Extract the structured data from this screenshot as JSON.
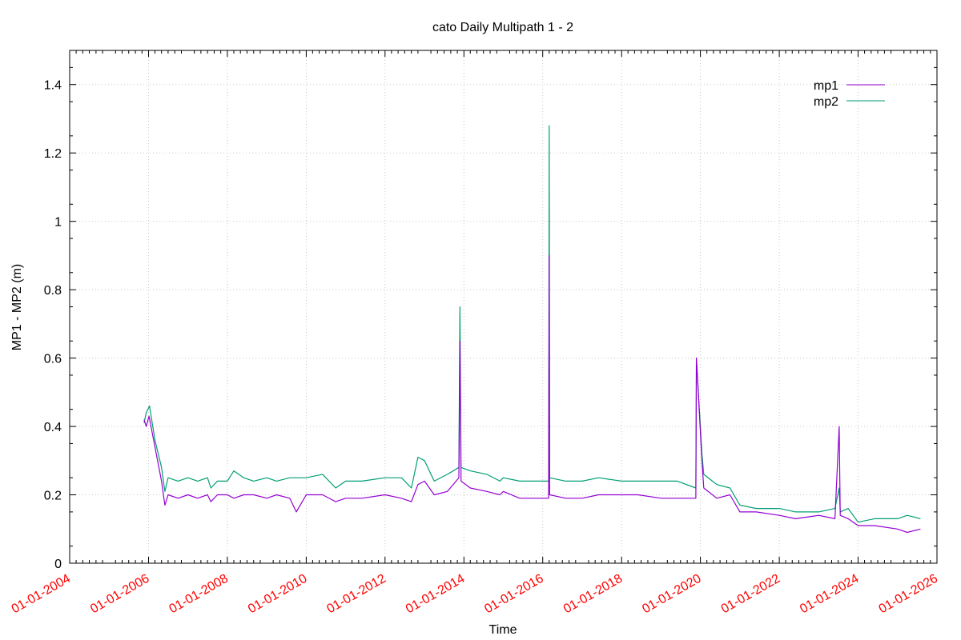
{
  "chart_data": {
    "type": "line",
    "title": "cato Daily Multipath 1 - 2",
    "xlabel": "Time",
    "ylabel": "MP1 - MP2 (m)",
    "x_is_date": true,
    "xlim": [
      "2004-01-01",
      "2026-01-01"
    ],
    "ylim": [
      0,
      1.5
    ],
    "x_ticks": [
      "01-01-2004",
      "01-01-2006",
      "01-01-2008",
      "01-01-2010",
      "01-01-2012",
      "01-01-2014",
      "01-01-2016",
      "01-01-2018",
      "01-01-2020",
      "01-01-2022",
      "01-01-2024",
      "01-01-2026"
    ],
    "y_ticks": [
      0,
      0.2,
      0.4,
      0.6,
      0.8,
      1,
      1.2,
      1.4
    ],
    "y_tick_labels": [
      "0",
      "0.2",
      "0.4",
      "0.6",
      "0.8",
      "1",
      "1.2",
      "1.4"
    ],
    "grid": true,
    "legend_position": "top-right",
    "x_tick_color": "#ff0000",
    "series": [
      {
        "name": "mp1",
        "color": "#9400d3",
        "points": [
          [
            "2005-11-20",
            0.42
          ],
          [
            "2005-12-10",
            0.4
          ],
          [
            "2006-01-05",
            0.43
          ],
          [
            "2006-03-01",
            0.34
          ],
          [
            "2006-05-01",
            0.24
          ],
          [
            "2006-06-01",
            0.17
          ],
          [
            "2006-07-01",
            0.2
          ],
          [
            "2006-10-01",
            0.19
          ],
          [
            "2007-01-01",
            0.2
          ],
          [
            "2007-04-01",
            0.19
          ],
          [
            "2007-07-01",
            0.2
          ],
          [
            "2007-08-01",
            0.18
          ],
          [
            "2007-10-01",
            0.2
          ],
          [
            "2008-01-01",
            0.2
          ],
          [
            "2008-03-01",
            0.19
          ],
          [
            "2008-06-01",
            0.2
          ],
          [
            "2008-09-01",
            0.2
          ],
          [
            "2009-01-01",
            0.19
          ],
          [
            "2009-04-01",
            0.2
          ],
          [
            "2009-08-01",
            0.19
          ],
          [
            "2009-10-01",
            0.15
          ],
          [
            "2010-01-01",
            0.2
          ],
          [
            "2010-06-01",
            0.2
          ],
          [
            "2010-10-01",
            0.18
          ],
          [
            "2011-01-01",
            0.19
          ],
          [
            "2011-06-01",
            0.19
          ],
          [
            "2012-01-01",
            0.2
          ],
          [
            "2012-06-01",
            0.19
          ],
          [
            "2012-09-01",
            0.18
          ],
          [
            "2012-11-01",
            0.23
          ],
          [
            "2013-01-01",
            0.24
          ],
          [
            "2013-04-01",
            0.2
          ],
          [
            "2013-08-01",
            0.21
          ],
          [
            "2013-11-15",
            0.25
          ],
          [
            "2013-11-25",
            0.65
          ],
          [
            "2013-12-05",
            0.24
          ],
          [
            "2014-03-01",
            0.22
          ],
          [
            "2014-08-01",
            0.21
          ],
          [
            "2014-12-01",
            0.2
          ],
          [
            "2015-01-01",
            0.21
          ],
          [
            "2015-06-01",
            0.19
          ],
          [
            "2016-01-01",
            0.19
          ],
          [
            "2016-02-25",
            0.19
          ],
          [
            "2016-03-01",
            0.9
          ],
          [
            "2016-03-05",
            0.2
          ],
          [
            "2016-08-01",
            0.19
          ],
          [
            "2017-01-01",
            0.19
          ],
          [
            "2017-06-01",
            0.2
          ],
          [
            "2018-01-01",
            0.2
          ],
          [
            "2018-06-01",
            0.2
          ],
          [
            "2019-01-01",
            0.19
          ],
          [
            "2019-06-01",
            0.19
          ],
          [
            "2019-11-20",
            0.19
          ],
          [
            "2019-11-25",
            0.6
          ],
          [
            "2020-01-15",
            0.3
          ],
          [
            "2020-02-01",
            0.22
          ],
          [
            "2020-06-01",
            0.19
          ],
          [
            "2020-10-01",
            0.2
          ],
          [
            "2021-01-01",
            0.15
          ],
          [
            "2021-06-01",
            0.15
          ],
          [
            "2022-01-01",
            0.14
          ],
          [
            "2022-06-01",
            0.13
          ],
          [
            "2023-01-01",
            0.14
          ],
          [
            "2023-06-01",
            0.13
          ],
          [
            "2023-07-10",
            0.4
          ],
          [
            "2023-07-20",
            0.14
          ],
          [
            "2023-10-01",
            0.13
          ],
          [
            "2024-01-01",
            0.11
          ],
          [
            "2024-06-01",
            0.11
          ],
          [
            "2025-01-01",
            0.1
          ],
          [
            "2025-04-01",
            0.09
          ],
          [
            "2025-08-01",
            0.1
          ]
        ]
      },
      {
        "name": "mp2",
        "color": "#009e73",
        "points": [
          [
            "2005-11-20",
            0.41
          ],
          [
            "2005-12-10",
            0.44
          ],
          [
            "2006-01-10",
            0.46
          ],
          [
            "2006-03-01",
            0.36
          ],
          [
            "2006-05-01",
            0.28
          ],
          [
            "2006-06-01",
            0.21
          ],
          [
            "2006-07-01",
            0.25
          ],
          [
            "2006-10-01",
            0.24
          ],
          [
            "2007-01-01",
            0.25
          ],
          [
            "2007-04-01",
            0.24
          ],
          [
            "2007-07-01",
            0.25
          ],
          [
            "2007-08-01",
            0.22
          ],
          [
            "2007-10-01",
            0.24
          ],
          [
            "2008-01-01",
            0.24
          ],
          [
            "2008-03-01",
            0.27
          ],
          [
            "2008-06-01",
            0.25
          ],
          [
            "2008-09-01",
            0.24
          ],
          [
            "2009-01-01",
            0.25
          ],
          [
            "2009-04-01",
            0.24
          ],
          [
            "2009-08-01",
            0.25
          ],
          [
            "2010-01-01",
            0.25
          ],
          [
            "2010-06-01",
            0.26
          ],
          [
            "2010-10-01",
            0.22
          ],
          [
            "2011-01-01",
            0.24
          ],
          [
            "2011-06-01",
            0.24
          ],
          [
            "2012-01-01",
            0.25
          ],
          [
            "2012-06-01",
            0.25
          ],
          [
            "2012-09-01",
            0.22
          ],
          [
            "2012-11-01",
            0.31
          ],
          [
            "2013-01-01",
            0.3
          ],
          [
            "2013-04-01",
            0.24
          ],
          [
            "2013-08-01",
            0.26
          ],
          [
            "2013-11-15",
            0.28
          ],
          [
            "2013-11-25",
            0.75
          ],
          [
            "2013-12-05",
            0.28
          ],
          [
            "2014-03-01",
            0.27
          ],
          [
            "2014-08-01",
            0.26
          ],
          [
            "2014-12-01",
            0.24
          ],
          [
            "2015-01-01",
            0.25
          ],
          [
            "2015-06-01",
            0.24
          ],
          [
            "2016-01-01",
            0.24
          ],
          [
            "2016-02-25",
            0.24
          ],
          [
            "2016-03-01",
            1.28
          ],
          [
            "2016-03-05",
            0.25
          ],
          [
            "2016-08-01",
            0.24
          ],
          [
            "2017-01-01",
            0.24
          ],
          [
            "2017-06-01",
            0.25
          ],
          [
            "2018-01-01",
            0.24
          ],
          [
            "2018-06-01",
            0.24
          ],
          [
            "2019-01-01",
            0.24
          ],
          [
            "2019-06-01",
            0.24
          ],
          [
            "2019-11-20",
            0.22
          ],
          [
            "2019-11-25",
            0.6
          ],
          [
            "2020-01-15",
            0.32
          ],
          [
            "2020-02-01",
            0.26
          ],
          [
            "2020-06-01",
            0.23
          ],
          [
            "2020-10-01",
            0.22
          ],
          [
            "2021-01-01",
            0.17
          ],
          [
            "2021-06-01",
            0.16
          ],
          [
            "2022-01-01",
            0.16
          ],
          [
            "2022-06-01",
            0.15
          ],
          [
            "2023-01-01",
            0.15
          ],
          [
            "2023-06-01",
            0.16
          ],
          [
            "2023-07-10",
            0.22
          ],
          [
            "2023-07-20",
            0.15
          ],
          [
            "2023-10-01",
            0.16
          ],
          [
            "2024-01-01",
            0.12
          ],
          [
            "2024-06-01",
            0.13
          ],
          [
            "2025-01-01",
            0.13
          ],
          [
            "2025-04-01",
            0.14
          ],
          [
            "2025-08-01",
            0.13
          ]
        ]
      }
    ]
  }
}
